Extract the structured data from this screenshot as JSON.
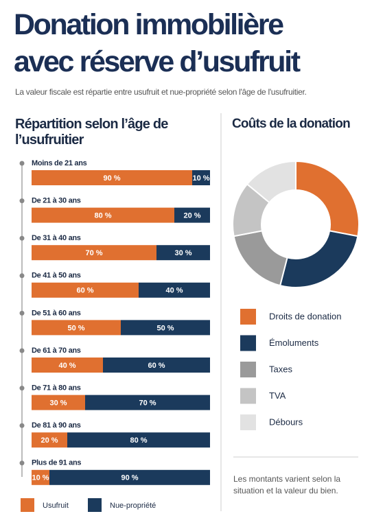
{
  "header": {
    "title": [
      "Donation immobilière",
      "avec réserve d’usufruit"
    ],
    "subtitle": "La valeur fiscale est répartie entre usufruit et nue-propriété selon l'âge de l'usufruitier."
  },
  "chart_data": [
    {
      "type": "bar",
      "orientation": "horizontal",
      "stacked": true,
      "title": "Répartition selon l’âge de l’usufruitier",
      "categories": [
        "Moins de 21 ans",
        "De 21 à 30 ans",
        "De 31 à 40 ans",
        "De 41 à 50 ans",
        "De 51 à 60 ans",
        "De 61 à 70 ans",
        "De 71 à 80 ans",
        "De 81 à 90 ans",
        "Plus de 91 ans"
      ],
      "series": [
        {
          "name": "Usufruit",
          "color": "#e07030",
          "values": [
            90,
            80,
            70,
            60,
            50,
            40,
            30,
            20,
            10
          ],
          "value_labels": [
            "90 %",
            "80 %",
            "70 %",
            "60 %",
            "50 %",
            "40 %",
            "30 %",
            "20 %",
            "10 %"
          ]
        },
        {
          "name": "Nue-propriété",
          "color": "#1b3a5c",
          "values": [
            10,
            20,
            30,
            40,
            50,
            60,
            70,
            80,
            90
          ],
          "value_labels": [
            "10 %",
            "20 %",
            "30 %",
            "40 %",
            "50 %",
            "60 %",
            "70 %",
            "80 %",
            "90 %"
          ]
        }
      ],
      "xlim": [
        0,
        100
      ],
      "legend": "bottom"
    },
    {
      "type": "pie",
      "donut": true,
      "title": "Coûts de la donation",
      "categories": [
        "Droits de donation",
        "Émoluments",
        "Taxes",
        "TVA",
        "Débours"
      ],
      "values": [
        28,
        26,
        18,
        14,
        14
      ],
      "colors": [
        "#e07030",
        "#1b3a5c",
        "#9a9a9a",
        "#c4c4c4",
        "#e2e2e2"
      ],
      "legend": "bottom"
    }
  ],
  "footnote": "Les montants varient selon la situation et la valeur du bien."
}
